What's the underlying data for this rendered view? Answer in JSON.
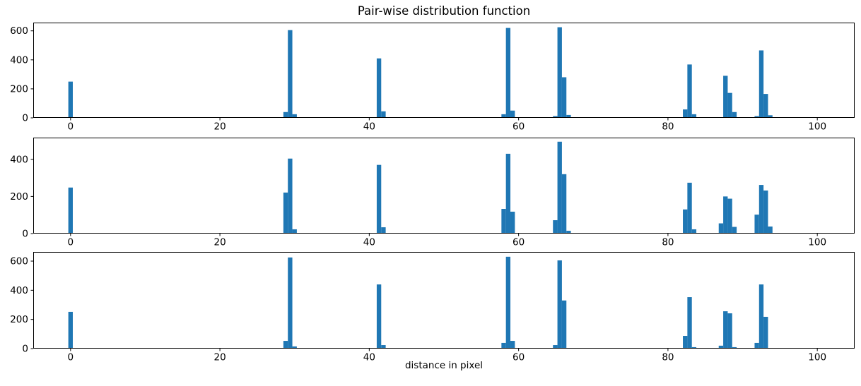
{
  "figure": {
    "title": "Pair-wise distribution function",
    "xlabel": "distance in pixel",
    "bar_color": "#1f77b4",
    "spine_color": "#000000",
    "tick_color": "#000000",
    "background_color": "#ffffff"
  },
  "chart_data": [
    {
      "type": "bar",
      "subplot": "top",
      "xlim": [
        -5,
        105
      ],
      "ylim": [
        0,
        657
      ],
      "xticks": [
        0,
        20,
        40,
        60,
        80,
        100
      ],
      "yticks": [
        0,
        200,
        400,
        600
      ],
      "bar_width": 0.6,
      "grid": false,
      "x": [
        0.0,
        28.8,
        29.4,
        30.0,
        41.3,
        41.9,
        58.0,
        58.6,
        59.2,
        64.9,
        65.5,
        66.1,
        66.7,
        82.3,
        82.9,
        83.5,
        87.7,
        88.3,
        88.9,
        91.9,
        92.5,
        93.1,
        93.7
      ],
      "values": [
        250,
        40,
        605,
        25,
        410,
        45,
        25,
        620,
        50,
        12,
        625,
        280,
        20,
        58,
        368,
        25,
        290,
        172,
        40,
        12,
        465,
        165,
        18
      ]
    },
    {
      "type": "bar",
      "subplot": "middle",
      "xlim": [
        -5,
        105
      ],
      "ylim": [
        0,
        517
      ],
      "xticks": [
        0,
        20,
        40,
        60,
        80,
        100
      ],
      "yticks": [
        0,
        200,
        400
      ],
      "bar_width": 0.6,
      "grid": false,
      "x": [
        0.0,
        28.8,
        29.4,
        30.0,
        41.3,
        41.9,
        58.0,
        58.6,
        59.2,
        64.9,
        65.5,
        66.1,
        66.7,
        82.3,
        82.9,
        83.5,
        87.1,
        87.7,
        88.3,
        88.9,
        91.9,
        92.5,
        93.1,
        93.7
      ],
      "values": [
        248,
        221,
        404,
        23,
        370,
        34,
        133,
        430,
        118,
        72,
        495,
        320,
        15,
        130,
        274,
        23,
        55,
        200,
        188,
        36,
        102,
        262,
        232,
        38
      ]
    },
    {
      "type": "bar",
      "subplot": "bottom",
      "xlim": [
        -5,
        105
      ],
      "ylim": [
        0,
        663
      ],
      "xticks": [
        0,
        20,
        40,
        60,
        80,
        100
      ],
      "yticks": [
        0,
        200,
        400,
        600
      ],
      "bar_width": 0.6,
      "grid": false,
      "x": [
        0.0,
        28.8,
        29.4,
        30.0,
        41.3,
        41.9,
        58.0,
        58.6,
        59.2,
        64.9,
        65.5,
        66.1,
        82.3,
        82.9,
        83.5,
        87.1,
        87.7,
        88.3,
        88.9,
        91.9,
        92.5,
        93.1
      ],
      "values": [
        252,
        53,
        625,
        15,
        440,
        24,
        39,
        630,
        53,
        24,
        605,
        330,
        87,
        353,
        10,
        20,
        256,
        242,
        10,
        39,
        440,
        218
      ]
    }
  ]
}
